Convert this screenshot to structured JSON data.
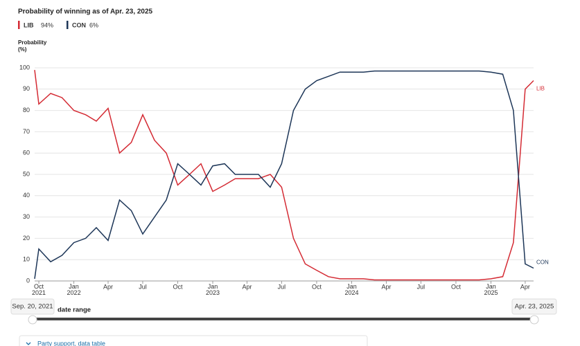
{
  "chart_data": {
    "type": "line",
    "title": "Probability of winning as of Apr. 23, 2025",
    "y_label": [
      "Probability",
      "(%)"
    ],
    "x": [
      "2021-09-20",
      "2021-10",
      "2021-11",
      "2021-12",
      "2022-01",
      "2022-02",
      "2022-03",
      "2022-04",
      "2022-05",
      "2022-06",
      "2022-07",
      "2022-08",
      "2022-09",
      "2022-10",
      "2022-11",
      "2022-12",
      "2023-01",
      "2023-02",
      "2023-03",
      "2023-04",
      "2023-05",
      "2023-06",
      "2023-07",
      "2023-08",
      "2023-09",
      "2023-10",
      "2023-11",
      "2023-12",
      "2024-01",
      "2024-02",
      "2024-03",
      "2024-04",
      "2024-05",
      "2024-06",
      "2024-07",
      "2024-08",
      "2024-09",
      "2024-10",
      "2024-11",
      "2024-12",
      "2025-01",
      "2025-02",
      "2025-03",
      "2025-04",
      "2025-04-23"
    ],
    "series": [
      {
        "name": "LIB",
        "color": "#d42a33",
        "legend_label": "94%",
        "values": [
          99,
          83,
          88,
          86,
          80,
          78,
          75,
          81,
          60,
          65,
          78,
          66,
          60,
          45,
          50,
          55,
          42,
          45,
          48,
          48,
          48,
          50,
          44,
          20,
          8,
          5,
          2,
          1,
          1,
          1,
          0.5,
          0.5,
          0.5,
          0.5,
          0.5,
          0.5,
          0.5,
          0.5,
          0.5,
          0.5,
          1,
          2,
          18,
          90,
          94
        ]
      },
      {
        "name": "CON",
        "color": "#1c3557",
        "legend_label": "6%",
        "values": [
          1,
          15,
          9,
          12,
          18,
          20,
          25,
          19,
          38,
          33,
          22,
          30,
          38,
          55,
          50,
          45,
          54,
          55,
          50,
          50,
          50,
          44,
          55,
          80,
          90,
          94,
          96,
          98,
          98,
          98,
          98.5,
          98.5,
          98.5,
          98.5,
          98.5,
          98.5,
          98.5,
          98.5,
          98.5,
          98.5,
          98,
          97,
          80,
          8,
          6
        ]
      }
    ],
    "xlim": [
      "2021-09-20",
      "2025-04-23"
    ],
    "xticks": [
      {
        "value": "2021-10",
        "label": "Oct 2021"
      },
      {
        "value": "2022-01",
        "label": "Jan 2022"
      },
      {
        "value": "2022-04",
        "label": "Apr"
      },
      {
        "value": "2022-07",
        "label": "Jul"
      },
      {
        "value": "2022-10",
        "label": "Oct"
      },
      {
        "value": "2023-01",
        "label": "Jan 2023"
      },
      {
        "value": "2023-04",
        "label": "Apr"
      },
      {
        "value": "2023-07",
        "label": "Jul"
      },
      {
        "value": "2023-10",
        "label": "Oct"
      },
      {
        "value": "2024-01",
        "label": "Jan 2024"
      },
      {
        "value": "2024-04",
        "label": "Apr"
      },
      {
        "value": "2024-07",
        "label": "Jul"
      },
      {
        "value": "2024-10",
        "label": "Oct"
      },
      {
        "value": "2025-01",
        "label": "Jan 2025"
      },
      {
        "value": "2025-04",
        "label": "Apr"
      }
    ],
    "ylim": [
      0,
      100
    ],
    "yticks": [
      0,
      10,
      20,
      30,
      40,
      50,
      60,
      70,
      80,
      90,
      100
    ],
    "grid": true,
    "range_control": {
      "label": "date range",
      "start": "Sep. 20, 2021",
      "end": "Apr. 23, 2025"
    },
    "table_link": "Party support, data table"
  }
}
